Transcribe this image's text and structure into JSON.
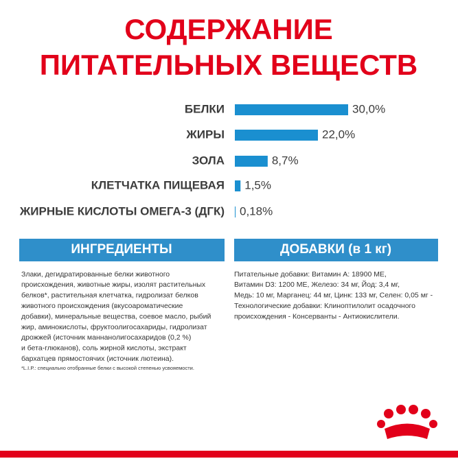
{
  "chart_data": {
    "type": "hbar",
    "title": [
      "СОДЕРЖАНИЕ",
      "ПИТАТЕЛЬНЫХ ВЕЩЕСТВ"
    ],
    "categories": [
      "БЕЛКИ",
      "ЖИРЫ",
      "ЗОЛА",
      "КЛЕТЧАТКА ПИЩЕВАЯ",
      "ЖИРНЫЕ КИСЛОТЫ ОМЕГА-3 (ДГК)"
    ],
    "values": [
      30.0,
      22.0,
      8.7,
      1.5,
      0.18
    ],
    "value_labels": [
      "30,0%",
      "22,0%",
      "8,7%",
      "1,5%",
      "0,18%"
    ],
    "color": "#1a8fd0"
  },
  "ingredients": {
    "heading": "ИНГРЕДИЕНТЫ",
    "lines": [
      "Злаки, дегидратированные белки животного",
      "происхождения, животные жиры, изолят растительных",
      "белков*, растительная клетчатка, гидролизат белков",
      "животного происхождения (вкусоароматические",
      "добавки), минеральные вещества, соевое масло, рыбий",
      "жир, аминокислоты, фруктоолигосахариды, гидролизат",
      "дрожжей (источник маннанолигосахаридов (0,2 %)",
      "и бета-глюканов), соль жирной кислоты, экстракт",
      "бархатцев прямостоячих (источник лютеина)."
    ],
    "footnote": "*L.I.P.: специально отобранные белки с высокой степенью усвояемости."
  },
  "additives": {
    "heading": "ДОБАВКИ (в 1 кг)",
    "lines": [
      "Питательные добавки: Витамин А: 18900 МЕ,",
      "Витамин D3: 1200 МЕ, Железо: 34 мг, Йод: 3,4 мг,",
      "Медь: 10 мг, Марганец: 44 мг, Цинк: 133 мг, Селен: 0,05 мг -",
      "Технологические добавки: Клиноптилолит осадочного",
      "происхождения - Консерванты - Антиокислители."
    ]
  }
}
